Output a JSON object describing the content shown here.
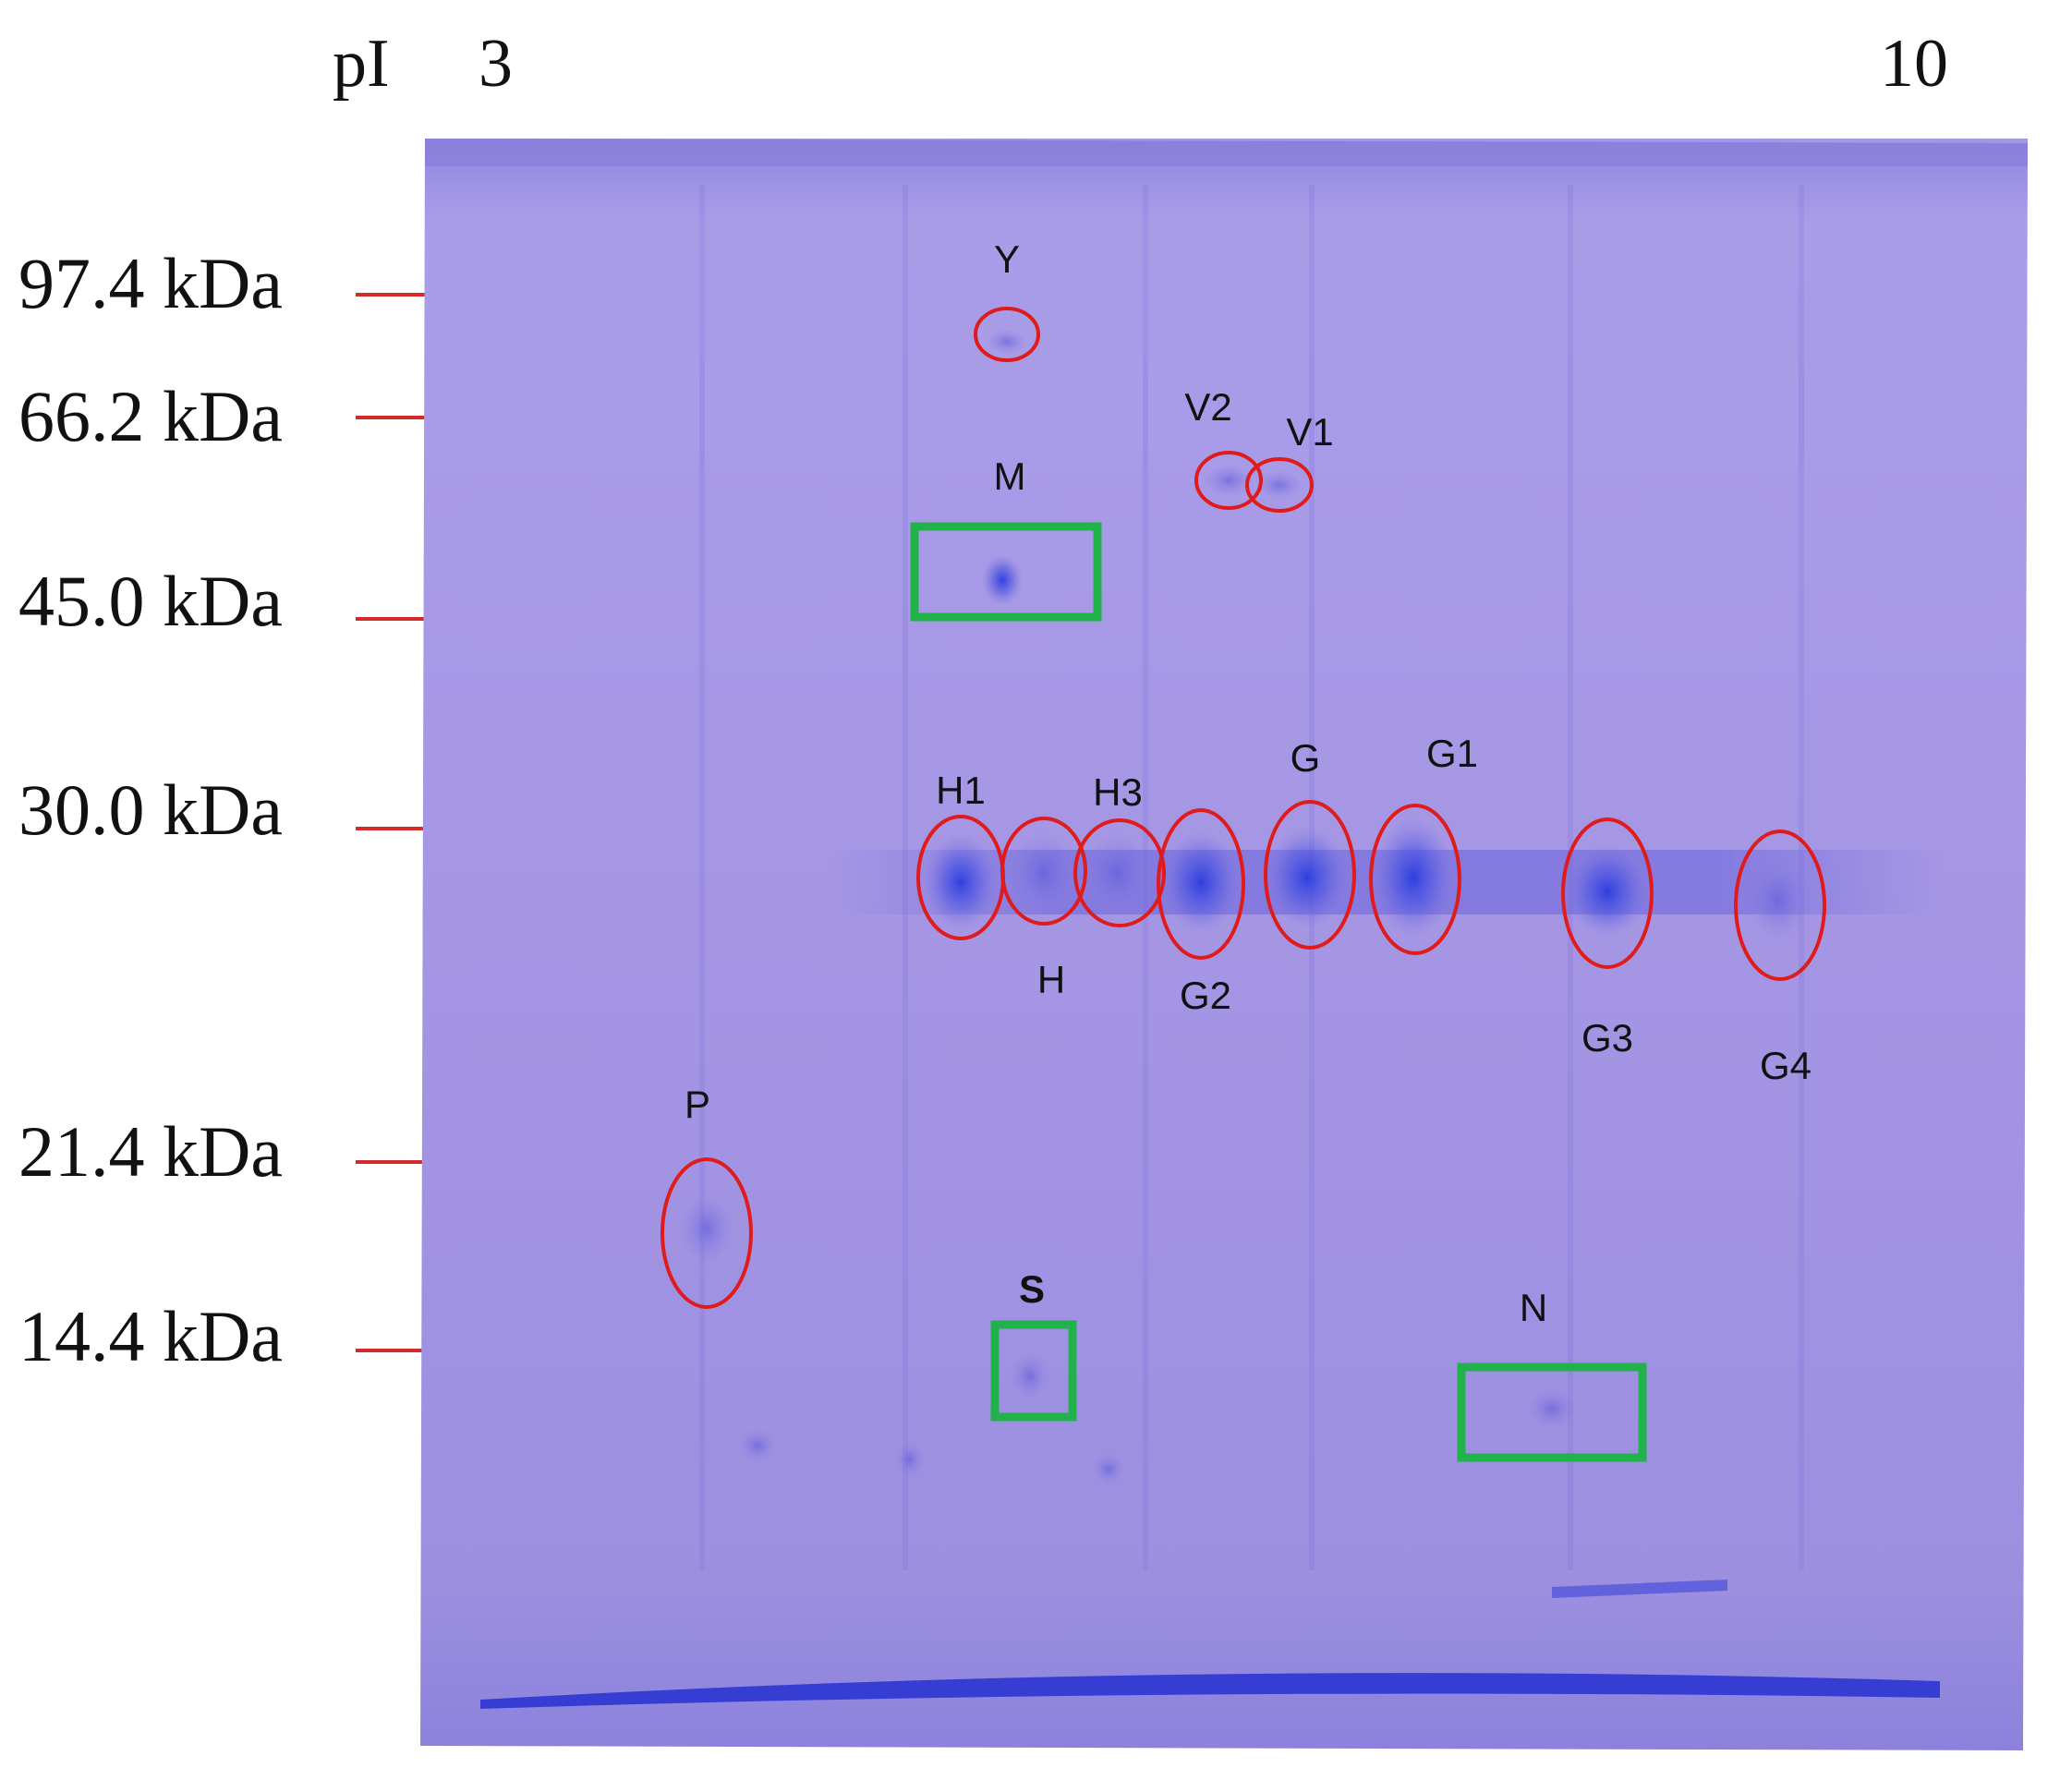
{
  "pi_axis": {
    "prefix": "pI",
    "min": "3",
    "max": "10"
  },
  "mw_markers": [
    {
      "label": "97.4 kDa"
    },
    {
      "label": "66.2 kDa"
    },
    {
      "label": "45.0 kDa"
    },
    {
      "label": "30.0 kDa"
    },
    {
      "label": "21.4 kDa"
    },
    {
      "label": "14.4 kDa"
    }
  ],
  "spots": {
    "red_circled": [
      "Y",
      "V2",
      "V1",
      "H1",
      "H",
      "H3",
      "G2",
      "G",
      "G1",
      "G3",
      "G4",
      "P"
    ],
    "green_boxed": [
      "M",
      "S",
      "N"
    ]
  },
  "colors": {
    "gel": "#a89be6",
    "stain": "#3a44d8",
    "circle": "#e01b1b",
    "box": "#22b24c",
    "marker_tick": "#d42a2a"
  }
}
